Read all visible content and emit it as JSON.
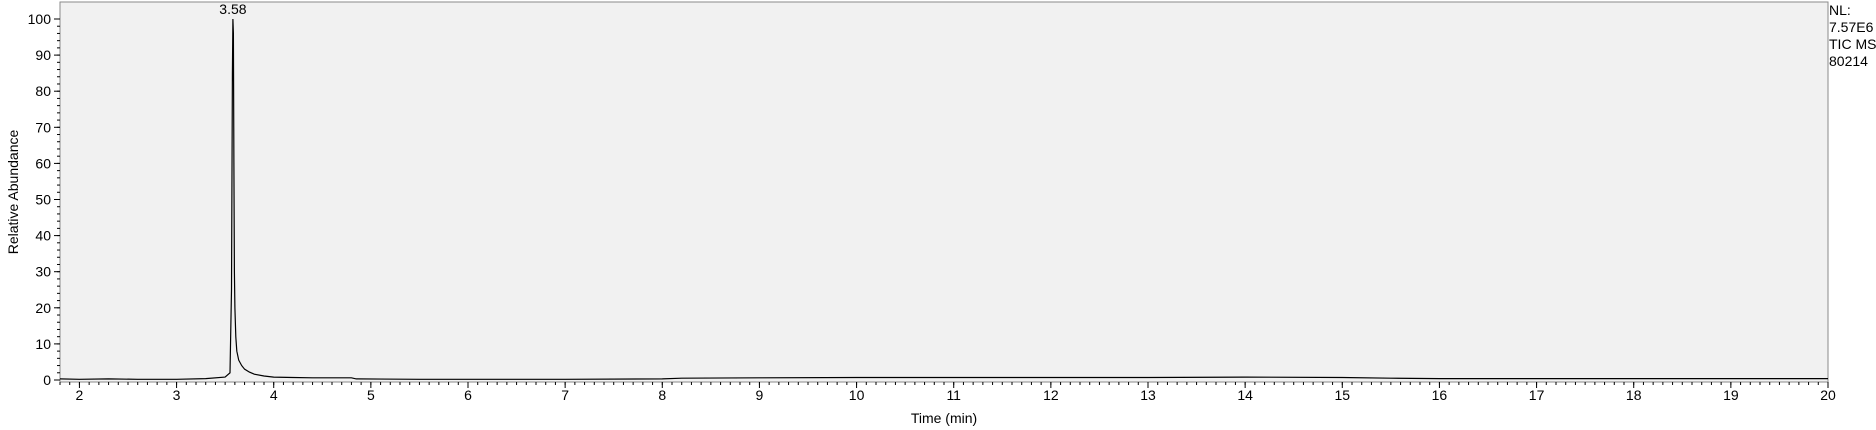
{
  "chart_data": {
    "type": "line",
    "title": "",
    "xlabel": "Time (min)",
    "ylabel": "Relative Abundance",
    "xlim": [
      1.8,
      20.0
    ],
    "ylim": [
      0,
      100
    ],
    "x_ticks": [
      2,
      3,
      4,
      5,
      6,
      7,
      8,
      9,
      10,
      11,
      12,
      13,
      14,
      15,
      16,
      17,
      18,
      19,
      20
    ],
    "y_ticks": [
      0,
      10,
      20,
      30,
      40,
      50,
      60,
      70,
      80,
      90,
      100
    ],
    "grid": false,
    "plot_background": "#f1f1f1",
    "line_color": "#000000",
    "series": [
      {
        "x": [
          1.8,
          2.0,
          2.3,
          2.6,
          3.0,
          3.3,
          3.5,
          3.55,
          3.565,
          3.575,
          3.58,
          3.585,
          3.59,
          3.595,
          3.6,
          3.61,
          3.62,
          3.64,
          3.67,
          3.7,
          3.75,
          3.8,
          3.9,
          4.0,
          4.2,
          4.4,
          4.8,
          4.85,
          5.5,
          6.0,
          7.0,
          8.0,
          8.2,
          9.0,
          10.0,
          11.0,
          12.0,
          13.0,
          14.0,
          15.0,
          15.5,
          16.0,
          17.0,
          18.0,
          19.0,
          20.0
        ],
        "y": [
          0.3,
          0.2,
          0.3,
          0.2,
          0.2,
          0.4,
          0.8,
          2.0,
          25.0,
          85.0,
          100.0,
          96.0,
          60.0,
          30.0,
          20.0,
          12.0,
          8.0,
          5.5,
          4.0,
          3.0,
          2.2,
          1.6,
          1.1,
          0.8,
          0.7,
          0.6,
          0.6,
          0.3,
          0.2,
          0.2,
          0.2,
          0.3,
          0.5,
          0.6,
          0.7,
          0.7,
          0.7,
          0.7,
          0.8,
          0.7,
          0.5,
          0.4,
          0.4,
          0.4,
          0.4,
          0.4
        ]
      }
    ],
    "annotations": [
      {
        "text": "3.58",
        "x": 3.58,
        "y": 100
      }
    ]
  },
  "side_info": {
    "line1": "NL:",
    "line2": "7.57E6",
    "line3": "TIC  MS",
    "line4": "80214"
  }
}
